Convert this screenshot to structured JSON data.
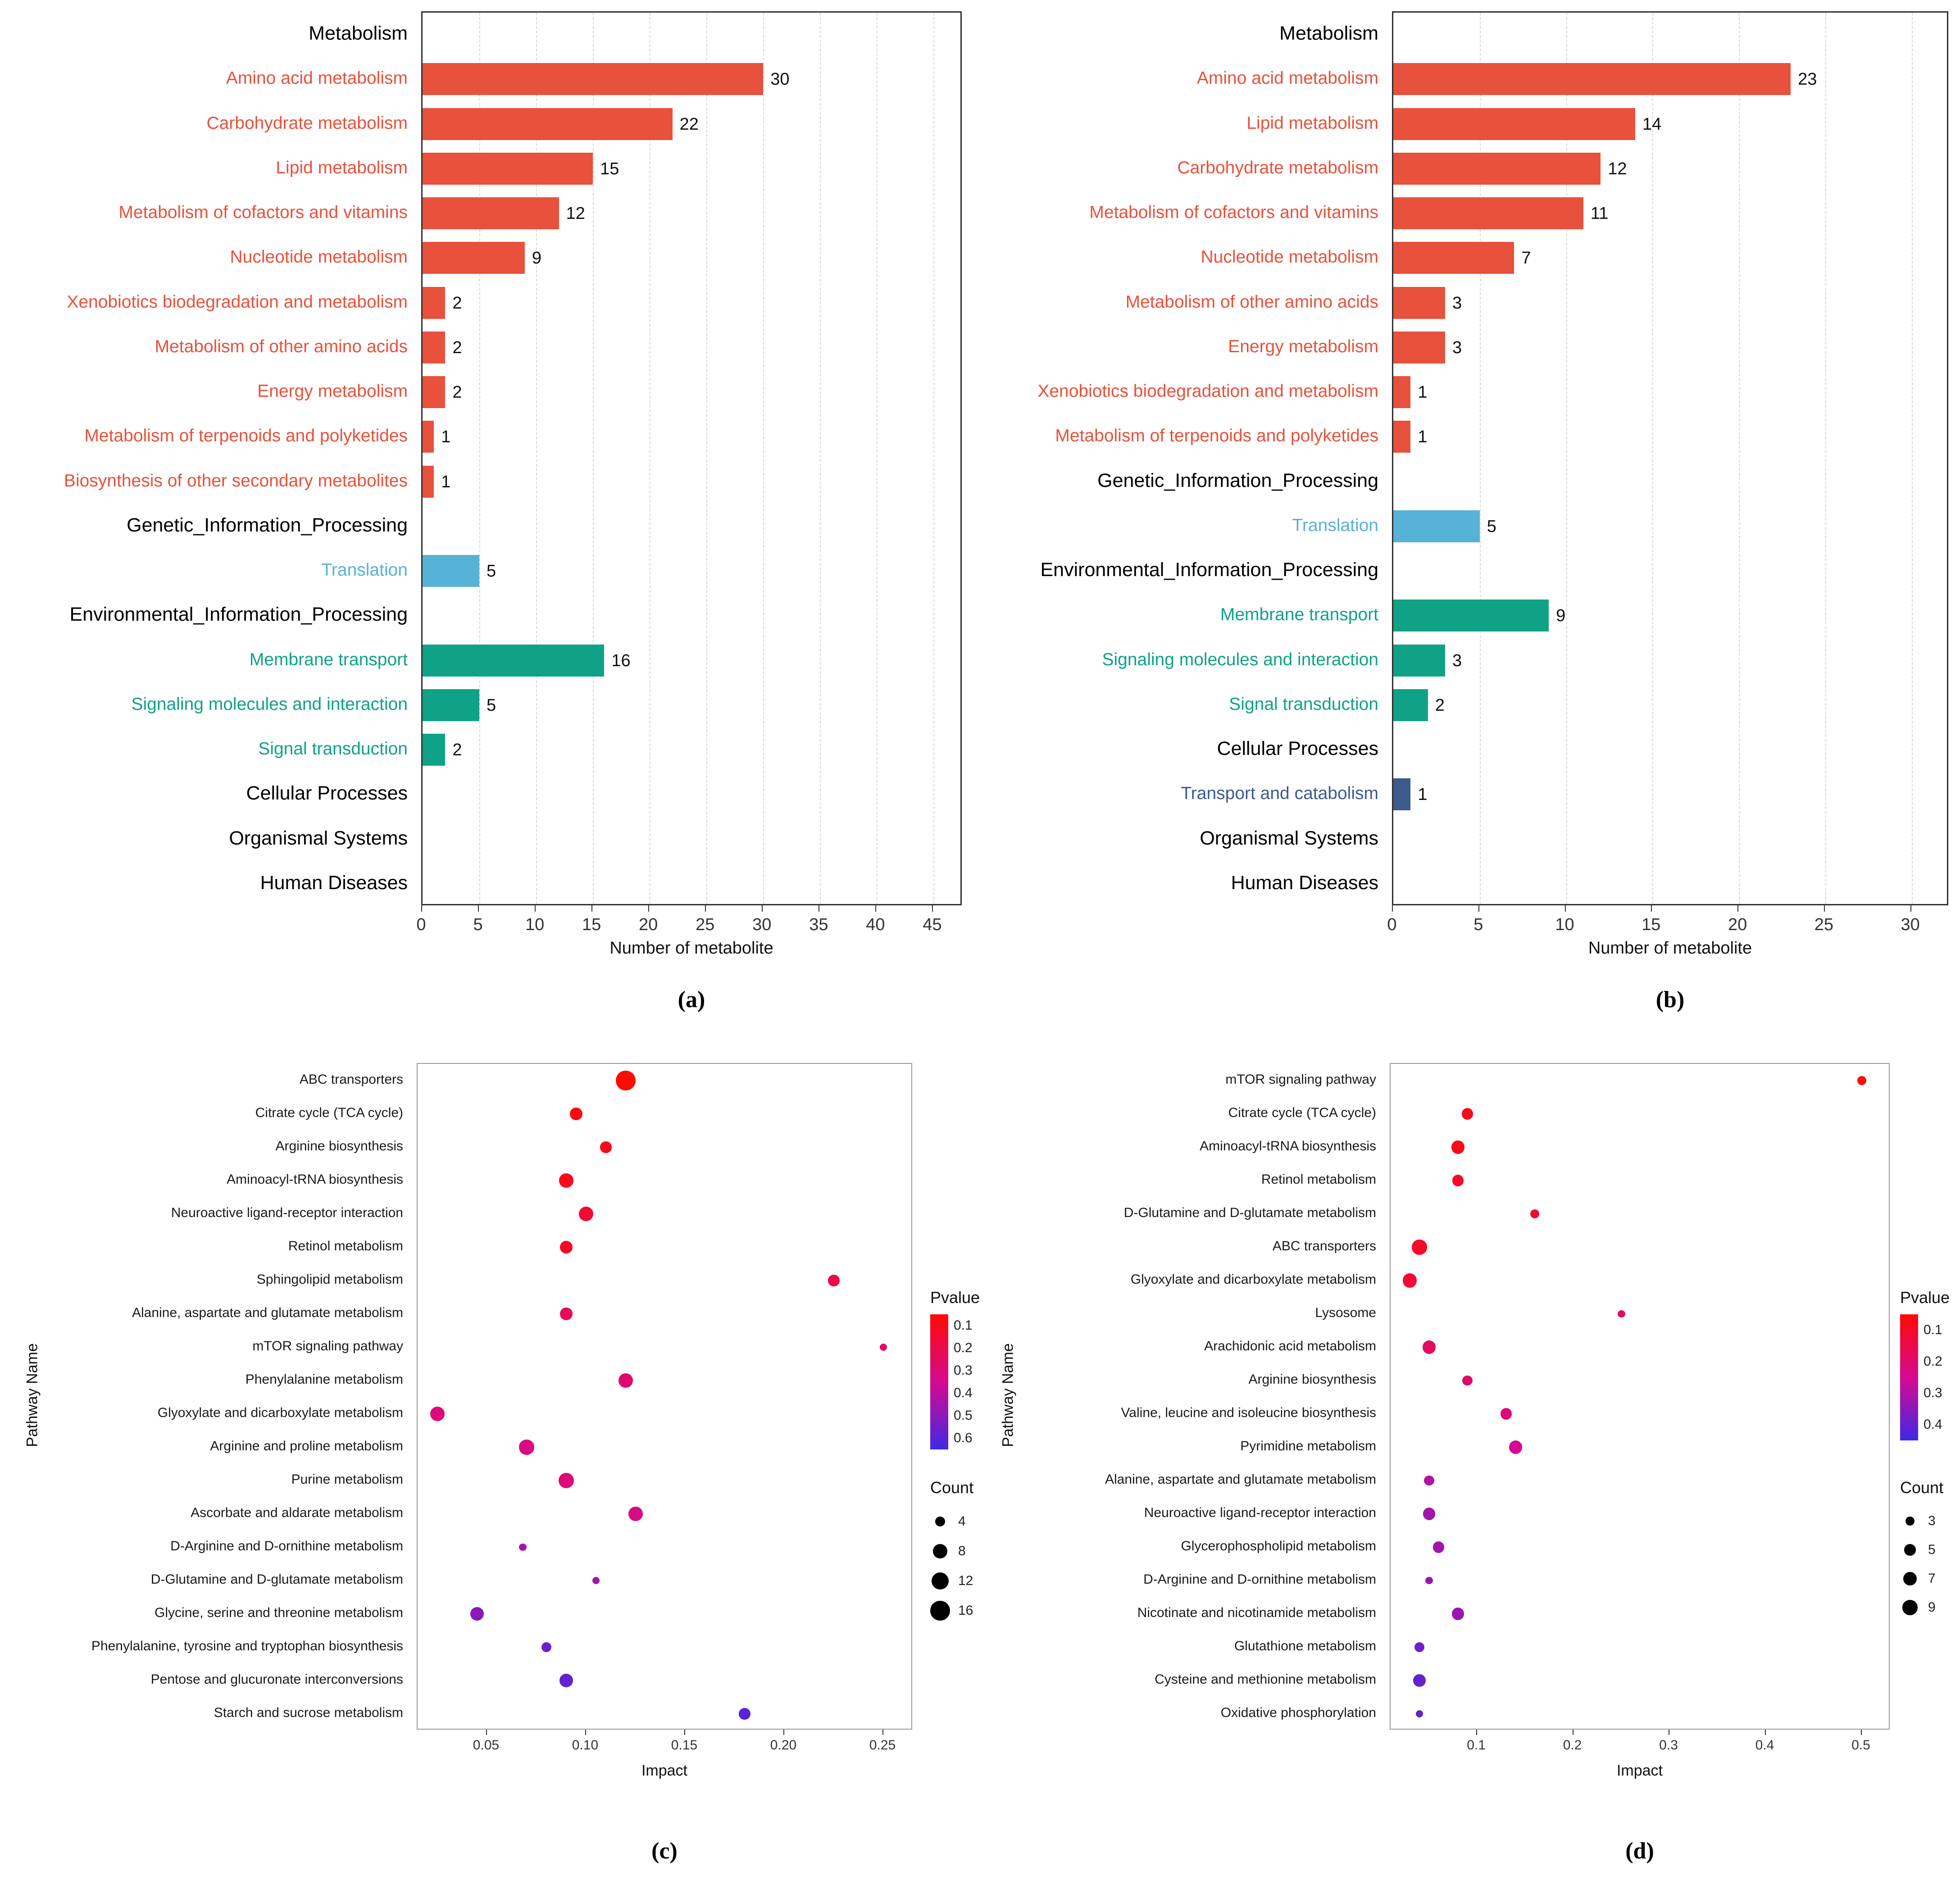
{
  "figure": {
    "captions": {
      "a": "(a)",
      "b": "(b)",
      "c": "(c)",
      "d": "(d)"
    }
  },
  "colors": {
    "bar_groups": {
      "header": "#000000",
      "metabolism": "#E8513B",
      "genetic": "#57B2D8",
      "environmental": "#0FA287",
      "cellular": "#3D5A8E"
    },
    "pvalue_gradient": {
      "low": "#FF0A05",
      "mid": "#D60A8F",
      "high": "#4028E4"
    },
    "count_dot": "#000000",
    "grid": "#D8D8D8"
  },
  "chart_data": [
    {
      "id": "a",
      "type": "bar",
      "orientation": "horizontal",
      "xlabel": "Number of metabolite",
      "xtick_values": [
        0,
        5,
        10,
        15,
        20,
        25,
        30,
        35,
        40,
        45
      ],
      "xtick_labels": [
        "0",
        "5",
        "10",
        "15",
        "20",
        "25",
        "30",
        "35",
        "40",
        "45"
      ],
      "xmax": 47.6,
      "rows": [
        {
          "label": "Metabolism",
          "group": "header",
          "value": null
        },
        {
          "label": "Amino acid metabolism",
          "group": "metabolism",
          "value": 30
        },
        {
          "label": "Carbohydrate metabolism",
          "group": "metabolism",
          "value": 22
        },
        {
          "label": "Lipid metabolism",
          "group": "metabolism",
          "value": 15
        },
        {
          "label": "Metabolism of cofactors and vitamins",
          "group": "metabolism",
          "value": 12
        },
        {
          "label": "Nucleotide metabolism",
          "group": "metabolism",
          "value": 9
        },
        {
          "label": "Xenobiotics biodegradation and metabolism",
          "group": "metabolism",
          "value": 2
        },
        {
          "label": "Metabolism of other amino acids",
          "group": "metabolism",
          "value": 2
        },
        {
          "label": "Energy metabolism",
          "group": "metabolism",
          "value": 2
        },
        {
          "label": "Metabolism of terpenoids and polyketides",
          "group": "metabolism",
          "value": 1
        },
        {
          "label": "Biosynthesis of other secondary metabolites",
          "group": "metabolism",
          "value": 1
        },
        {
          "label": "Genetic_Information_Processing",
          "group": "header",
          "value": null
        },
        {
          "label": "Translation",
          "group": "genetic",
          "value": 5
        },
        {
          "label": "Environmental_Information_Processing",
          "group": "header",
          "value": null
        },
        {
          "label": "Membrane transport",
          "group": "environmental",
          "value": 16
        },
        {
          "label": "Signaling molecules and interaction",
          "group": "environmental",
          "value": 5
        },
        {
          "label": "Signal transduction",
          "group": "environmental",
          "value": 2
        },
        {
          "label": "Cellular Processes",
          "group": "header",
          "value": null
        },
        {
          "label": "Organismal Systems",
          "group": "header",
          "value": null
        },
        {
          "label": "Human Diseases",
          "group": "header",
          "value": null
        }
      ]
    },
    {
      "id": "b",
      "type": "bar",
      "orientation": "horizontal",
      "xlabel": "Number of metabolite",
      "xtick_values": [
        0,
        5,
        10,
        15,
        20,
        25,
        30
      ],
      "xtick_labels": [
        "0",
        "5",
        "10",
        "15",
        "20",
        "25",
        "30"
      ],
      "xmax": 32.2,
      "rows": [
        {
          "label": "Metabolism",
          "group": "header",
          "value": null
        },
        {
          "label": "Amino acid metabolism",
          "group": "metabolism",
          "value": 23
        },
        {
          "label": "Lipid metabolism",
          "group": "metabolism",
          "value": 14
        },
        {
          "label": "Carbohydrate metabolism",
          "group": "metabolism",
          "value": 12
        },
        {
          "label": "Metabolism of cofactors and vitamins",
          "group": "metabolism",
          "value": 11
        },
        {
          "label": "Nucleotide metabolism",
          "group": "metabolism",
          "value": 7
        },
        {
          "label": "Metabolism of other amino acids",
          "group": "metabolism",
          "value": 3
        },
        {
          "label": "Energy metabolism",
          "group": "metabolism",
          "value": 3
        },
        {
          "label": "Xenobiotics biodegradation and metabolism",
          "group": "metabolism",
          "value": 1
        },
        {
          "label": "Metabolism of terpenoids and polyketides",
          "group": "metabolism",
          "value": 1
        },
        {
          "label": "Genetic_Information_Processing",
          "group": "header",
          "value": null
        },
        {
          "label": "Translation",
          "group": "genetic",
          "value": 5
        },
        {
          "label": "Environmental_Information_Processing",
          "group": "header",
          "value": null
        },
        {
          "label": "Membrane transport",
          "group": "environmental",
          "value": 9
        },
        {
          "label": "Signaling molecules and interaction",
          "group": "environmental",
          "value": 3
        },
        {
          "label": "Signal transduction",
          "group": "environmental",
          "value": 2
        },
        {
          "label": "Cellular Processes",
          "group": "header",
          "value": null
        },
        {
          "label": "Transport and catabolism",
          "group": "cellular",
          "value": 1
        },
        {
          "label": "Organismal Systems",
          "group": "header",
          "value": null
        },
        {
          "label": "Human Diseases",
          "group": "header",
          "value": null
        }
      ]
    },
    {
      "id": "c",
      "type": "scatter",
      "xlabel": "Impact",
      "ylabel": "Pathway Name",
      "xtick_values": [
        0.05,
        0.1,
        0.15,
        0.2,
        0.25
      ],
      "xtick_labels": [
        "0.05",
        "0.10",
        "0.15",
        "0.20",
        "0.25"
      ],
      "xdomain": [
        0.015,
        0.265
      ],
      "legend": {
        "pvalue_title": "Pvalue",
        "pvalue_values": [
          0.1,
          0.2,
          0.3,
          0.4,
          0.5,
          0.6
        ],
        "pvalue_labels": [
          "0.1",
          "0.2",
          "0.3",
          "0.4",
          "0.5",
          "0.6"
        ],
        "pvalue_domain": [
          0.05,
          0.65
        ],
        "count_title": "Count",
        "count_values": [
          4,
          8,
          12,
          16
        ]
      },
      "points": [
        {
          "label": "ABC transporters",
          "impact": 0.12,
          "pvalue": 0.05,
          "count": 16
        },
        {
          "label": "Citrate cycle (TCA cycle)",
          "impact": 0.095,
          "pvalue": 0.08,
          "count": 6
        },
        {
          "label": "Arginine biosynthesis",
          "impact": 0.11,
          "pvalue": 0.1,
          "count": 5
        },
        {
          "label": "Aminoacyl-tRNA biosynthesis",
          "impact": 0.09,
          "pvalue": 0.1,
          "count": 8
        },
        {
          "label": "Neuroactive ligand-receptor interaction",
          "impact": 0.1,
          "pvalue": 0.15,
          "count": 8
        },
        {
          "label": "Retinol metabolism",
          "impact": 0.09,
          "pvalue": 0.12,
          "count": 6
        },
        {
          "label": "Sphingolipid metabolism",
          "impact": 0.225,
          "pvalue": 0.2,
          "count": 5
        },
        {
          "label": "Alanine, aspartate and glutamate metabolism",
          "impact": 0.09,
          "pvalue": 0.22,
          "count": 6
        },
        {
          "label": "mTOR signaling pathway",
          "impact": 0.25,
          "pvalue": 0.25,
          "count": 2
        },
        {
          "label": "Phenylalanine metabolism",
          "impact": 0.12,
          "pvalue": 0.28,
          "count": 8
        },
        {
          "label": "Glyoxylate and dicarboxylate metabolism",
          "impact": 0.025,
          "pvalue": 0.3,
          "count": 8
        },
        {
          "label": "Arginine and proline metabolism",
          "impact": 0.07,
          "pvalue": 0.32,
          "count": 9
        },
        {
          "label": "Purine metabolism",
          "impact": 0.09,
          "pvalue": 0.3,
          "count": 10
        },
        {
          "label": "Ascorbate and aldarate metabolism",
          "impact": 0.125,
          "pvalue": 0.33,
          "count": 8
        },
        {
          "label": "D-Arginine and D-ornithine metabolism",
          "impact": 0.068,
          "pvalue": 0.45,
          "count": 2
        },
        {
          "label": "D-Glutamine and D-glutamate metabolism",
          "impact": 0.105,
          "pvalue": 0.45,
          "count": 2
        },
        {
          "label": "Glycine, serine and threonine metabolism",
          "impact": 0.045,
          "pvalue": 0.5,
          "count": 7
        },
        {
          "label": "Phenylalanine, tyrosine and tryptophan biosynthesis",
          "impact": 0.08,
          "pvalue": 0.55,
          "count": 4
        },
        {
          "label": "Pentose and glucuronate interconversions",
          "impact": 0.09,
          "pvalue": 0.58,
          "count": 7
        },
        {
          "label": "Starch and sucrose metabolism",
          "impact": 0.18,
          "pvalue": 0.6,
          "count": 5
        }
      ]
    },
    {
      "id": "d",
      "type": "scatter",
      "xlabel": "Impact",
      "ylabel": "Pathway Name",
      "xtick_values": [
        0.1,
        0.2,
        0.3,
        0.4,
        0.5
      ],
      "xtick_labels": [
        "0.1",
        "0.2",
        "0.3",
        "0.4",
        "0.5"
      ],
      "xdomain": [
        0.01,
        0.53
      ],
      "legend": {
        "pvalue_title": "Pvalue",
        "pvalue_values": [
          0.1,
          0.2,
          0.3,
          0.4
        ],
        "pvalue_labels": [
          "0.1",
          "0.2",
          "0.3",
          "0.4"
        ],
        "pvalue_domain": [
          0.05,
          0.45
        ],
        "count_title": "Count",
        "count_values": [
          3,
          5,
          7,
          9
        ]
      },
      "points": [
        {
          "label": "mTOR signaling pathway",
          "impact": 0.5,
          "pvalue": 0.05,
          "count": 3
        },
        {
          "label": "Citrate cycle (TCA cycle)",
          "impact": 0.09,
          "pvalue": 0.08,
          "count": 5
        },
        {
          "label": "Aminoacyl-tRNA biosynthesis",
          "impact": 0.08,
          "pvalue": 0.08,
          "count": 7
        },
        {
          "label": "Retinol metabolism",
          "impact": 0.08,
          "pvalue": 0.1,
          "count": 5
        },
        {
          "label": "D-Glutamine and D-glutamate metabolism",
          "impact": 0.16,
          "pvalue": 0.12,
          "count": 3
        },
        {
          "label": "ABC transporters",
          "impact": 0.04,
          "pvalue": 0.1,
          "count": 9
        },
        {
          "label": "Glyoxylate and dicarboxylate metabolism",
          "impact": 0.03,
          "pvalue": 0.12,
          "count": 8
        },
        {
          "label": "Lysosome",
          "impact": 0.25,
          "pvalue": 0.18,
          "count": 2
        },
        {
          "label": "Arachidonic acid metabolism",
          "impact": 0.05,
          "pvalue": 0.18,
          "count": 7
        },
        {
          "label": "Arginine biosynthesis",
          "impact": 0.09,
          "pvalue": 0.2,
          "count": 4
        },
        {
          "label": "Valine, leucine and isoleucine biosynthesis",
          "impact": 0.13,
          "pvalue": 0.22,
          "count": 5
        },
        {
          "label": "Pyrimidine metabolism",
          "impact": 0.14,
          "pvalue": 0.25,
          "count": 7
        },
        {
          "label": "Alanine, aspartate and glutamate metabolism",
          "impact": 0.05,
          "pvalue": 0.3,
          "count": 4
        },
        {
          "label": "Neuroactive ligand-receptor interaction",
          "impact": 0.05,
          "pvalue": 0.32,
          "count": 6
        },
        {
          "label": "Glycerophospholipid metabolism",
          "impact": 0.06,
          "pvalue": 0.32,
          "count": 5
        },
        {
          "label": "D-Arginine and D-ornithine metabolism",
          "impact": 0.05,
          "pvalue": 0.33,
          "count": 2
        },
        {
          "label": "Nicotinate and nicotinamide metabolism",
          "impact": 0.08,
          "pvalue": 0.33,
          "count": 6
        },
        {
          "label": "Glutathione metabolism",
          "impact": 0.04,
          "pvalue": 0.38,
          "count": 4
        },
        {
          "label": "Cysteine and methionine metabolism",
          "impact": 0.04,
          "pvalue": 0.4,
          "count": 6
        },
        {
          "label": "Oxidative phosphorylation",
          "impact": 0.04,
          "pvalue": 0.4,
          "count": 2
        }
      ]
    }
  ]
}
